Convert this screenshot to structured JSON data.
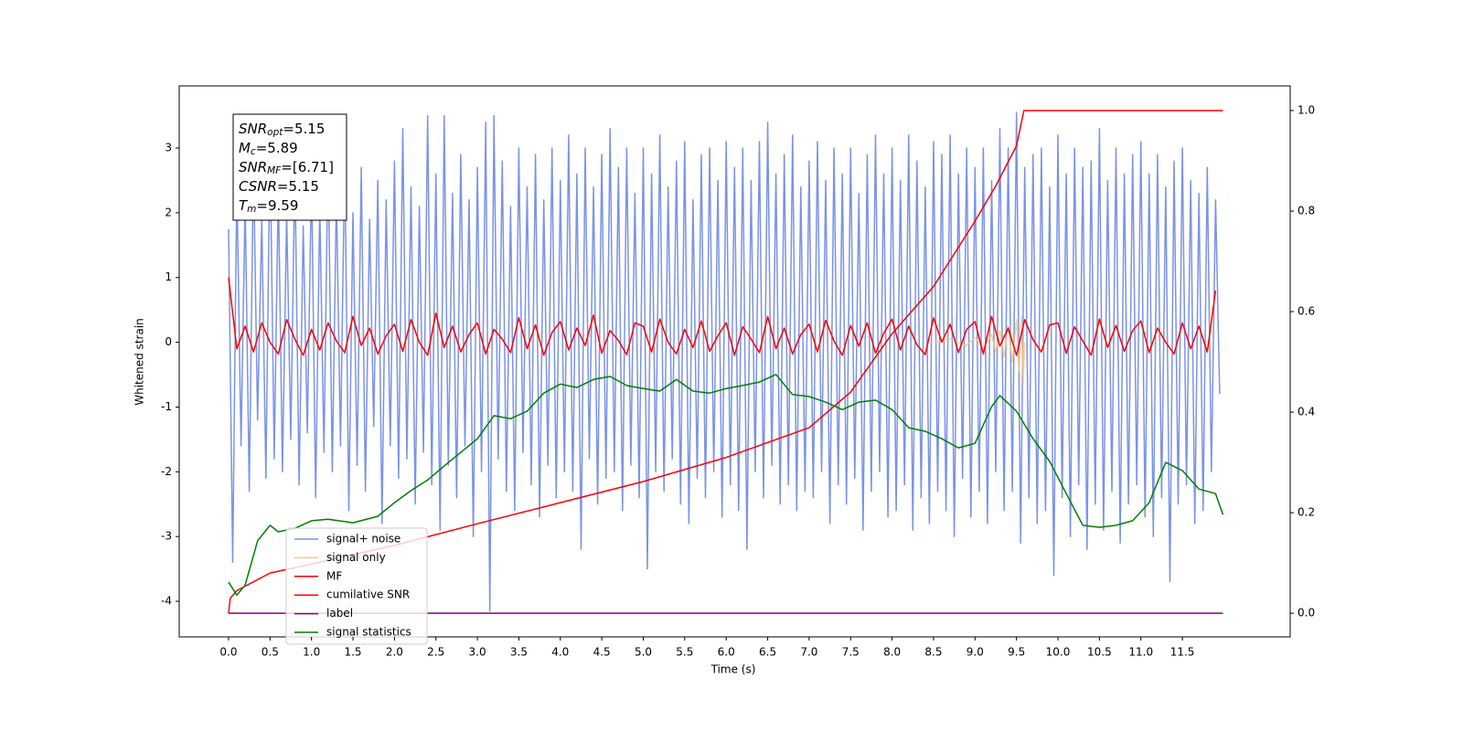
{
  "chart_data": {
    "type": "line",
    "xlabel": "Time (s)",
    "ylabel": "Whitened strain",
    "xlim": [
      -0.595,
      12.8
    ],
    "ylim": [
      -4.55,
      3.96
    ],
    "y2lim": [
      -0.047,
      1.049
    ],
    "xticks": [
      {
        "value": 0,
        "label": "0.0"
      },
      0.5,
      {
        "value": 1,
        "label": "1.0"
      },
      1.5,
      {
        "value": 2,
        "label": "2.0"
      },
      2.5,
      {
        "value": 3,
        "label": "3.0"
      },
      3.5,
      {
        "value": 4,
        "label": "4.0"
      },
      4.5,
      {
        "value": 5,
        "label": "5.0"
      },
      5.5,
      {
        "value": 6,
        "label": "6.0"
      },
      6.5,
      {
        "value": 7,
        "label": "7.0"
      },
      7.5,
      {
        "value": 8,
        "label": "8.0"
      },
      8.5,
      {
        "value": 9,
        "label": "9.0"
      },
      9.5,
      {
        "value": 10,
        "label": "10.0"
      },
      10.5,
      {
        "value": 11,
        "label": "11.0"
      },
      11.5
    ],
    "yticks": [
      -4,
      -3,
      -2,
      -1,
      0,
      1,
      2,
      3
    ],
    "y2ticks": [
      {
        "value": 0,
        "label": "0.0"
      },
      0.2,
      0.4,
      0.6,
      0.8,
      {
        "value": 1,
        "label": "1.0"
      }
    ],
    "legend": "lower left",
    "annotation": [
      {
        "base": "SNR",
        "sub": "opt",
        "text": "=5.15"
      },
      {
        "base": "M",
        "sub": "c",
        "text": "=5.89"
      },
      {
        "base": "SNR",
        "sub": "MF",
        "text": "=[6.71]"
      },
      {
        "base": "CSNR",
        "sub": "",
        "text": "=5.15"
      },
      {
        "base": "T",
        "sub": "m",
        "text": "=9.59"
      }
    ],
    "x": [
      0,
      0.05,
      0.1,
      0.15,
      0.2,
      0.25,
      0.3,
      0.35,
      0.4,
      0.45,
      0.5,
      0.55,
      0.6,
      0.65,
      0.7,
      0.75,
      0.8,
      0.85,
      0.9,
      0.95,
      1,
      1.05,
      1.1,
      1.15,
      1.2,
      1.25,
      1.3,
      1.35,
      1.4,
      1.45,
      1.5,
      1.55,
      1.6,
      1.65,
      1.7,
      1.75,
      1.8,
      1.85,
      1.9,
      1.95,
      2,
      2.05,
      2.1,
      2.15,
      2.2,
      2.25,
      2.3,
      2.35,
      2.4,
      2.45,
      2.5,
      2.55,
      2.6,
      2.65,
      2.7,
      2.75,
      2.8,
      2.85,
      2.9,
      2.95,
      3,
      3.05,
      3.1,
      3.15,
      3.2,
      3.25,
      3.3,
      3.35,
      3.4,
      3.45,
      3.5,
      3.55,
      3.6,
      3.65,
      3.7,
      3.75,
      3.8,
      3.85,
      3.9,
      3.95,
      4,
      4.05,
      4.1,
      4.15,
      4.2,
      4.25,
      4.3,
      4.35,
      4.4,
      4.45,
      4.5,
      4.55,
      4.6,
      4.65,
      4.7,
      4.75,
      4.8,
      4.85,
      4.9,
      4.95,
      5,
      5.05,
      5.1,
      5.15,
      5.2,
      5.25,
      5.3,
      5.35,
      5.4,
      5.45,
      5.5,
      5.55,
      5.6,
      5.65,
      5.7,
      5.75,
      5.8,
      5.85,
      5.9,
      5.95,
      6,
      6.05,
      6.1,
      6.15,
      6.2,
      6.25,
      6.3,
      6.35,
      6.4,
      6.45,
      6.5,
      6.55,
      6.6,
      6.65,
      6.7,
      6.75,
      6.8,
      6.85,
      6.9,
      6.95,
      7,
      7.05,
      7.1,
      7.15,
      7.2,
      7.25,
      7.3,
      7.35,
      7.4,
      7.45,
      7.5,
      7.55,
      7.6,
      7.65,
      7.7,
      7.75,
      7.8,
      7.85,
      7.9,
      7.95,
      8,
      8.05,
      8.1,
      8.15,
      8.2,
      8.25,
      8.3,
      8.35,
      8.4,
      8.45,
      8.5,
      8.55,
      8.6,
      8.65,
      8.7,
      8.75,
      8.8,
      8.85,
      8.9,
      8.95,
      9,
      9.05,
      9.1,
      9.15,
      9.2,
      9.25,
      9.3,
      9.35,
      9.4,
      9.45,
      9.5,
      9.55,
      9.6,
      9.65,
      9.7,
      9.75,
      9.8,
      9.85,
      9.9,
      9.95,
      10,
      10.05,
      10.1,
      10.15,
      10.2,
      10.25,
      10.3,
      10.35,
      10.4,
      10.45,
      10.5,
      10.55,
      10.6,
      10.65,
      10.7,
      10.75,
      10.8,
      10.85,
      10.9,
      10.95,
      11,
      11.05,
      11.1,
      11.15,
      11.2,
      11.25,
      11.3,
      11.35,
      11.4,
      11.45,
      11.5,
      11.55,
      11.6,
      11.65,
      11.7,
      11.75,
      11.8,
      11.85,
      11.9,
      11.95
    ],
    "series": [
      {
        "name": "signal+ noise",
        "color": "#7b93e6",
        "values": [
          1.75,
          -3.4,
          2.5,
          -1.6,
          2.2,
          -2.3,
          2.8,
          -1.2,
          1.9,
          -2.1,
          3.1,
          -1.8,
          2.4,
          -2.0,
          2.0,
          -1.5,
          2.7,
          -2.2,
          1.8,
          -1.4,
          2.6,
          -2.4,
          2.1,
          -1.7,
          3.0,
          -2.0,
          2.3,
          -1.6,
          2.9,
          -2.6,
          2.0,
          -1.9,
          2.7,
          -2.3,
          1.9,
          -1.3,
          2.5,
          -2.8,
          2.2,
          -1.6,
          2.8,
          -2.1,
          3.3,
          -1.8,
          2.4,
          -2.5,
          2.1,
          -1.7,
          3.5,
          -2.2,
          2.6,
          -2.9,
          3.5,
          -1.9,
          2.3,
          -2.4,
          2.9,
          -1.6,
          2.2,
          -3.0,
          2.7,
          -2.0,
          3.4,
          -4.15,
          3.5,
          -1.8,
          2.8,
          -2.3,
          2.1,
          -2.6,
          3.0,
          -1.7,
          2.4,
          -2.2,
          2.9,
          -2.7,
          2.2,
          -1.9,
          3.0,
          -2.4,
          2.5,
          -2.0,
          3.2,
          -2.3,
          2.6,
          -3.2,
          3.0,
          -1.8,
          2.4,
          -2.5,
          2.9,
          -2.1,
          3.3,
          -2.0,
          2.7,
          -2.6,
          3.0,
          -1.9,
          2.3,
          -2.4,
          3.0,
          -3.5,
          2.6,
          -2.0,
          3.2,
          -2.3,
          2.4,
          -1.8,
          2.8,
          -2.5,
          3.1,
          -2.8,
          2.2,
          -2.1,
          2.9,
          -2.4,
          3.0,
          -2.0,
          2.5,
          -2.7,
          3.1,
          -2.2,
          2.7,
          -2.6,
          3.0,
          -3.2,
          2.5,
          -2.0,
          3.1,
          -2.4,
          3.4,
          -1.9,
          2.6,
          -2.5,
          2.9,
          -2.2,
          3.2,
          -2.6,
          2.4,
          -2.3,
          2.8,
          -2.4,
          3.1,
          -2.0,
          2.5,
          -2.8,
          3.0,
          -2.2,
          2.6,
          -2.5,
          3.0,
          -2.1,
          2.3,
          -2.9,
          2.9,
          -2.3,
          3.2,
          -2.0,
          2.6,
          -2.7,
          3.0,
          -2.6,
          2.5,
          -2.2,
          3.2,
          -2.9,
          2.8,
          -2.4,
          2.4,
          -2.8,
          3.1,
          -2.3,
          2.9,
          -2.6,
          3.2,
          -3.0,
          2.6,
          -2.1,
          3.0,
          -2.7,
          2.7,
          -2.3,
          3.0,
          -2.8,
          2.5,
          -2.0,
          3.3,
          -2.6,
          3.0,
          -2.3,
          3.55,
          -3.1,
          2.7,
          -2.4,
          2.9,
          -2.8,
          3.0,
          -2.6,
          2.4,
          -3.6,
          3.2,
          -2.4,
          2.6,
          -3.0,
          3.0,
          -2.2,
          2.7,
          -3.2,
          2.8,
          -2.5,
          3.3,
          -2.9,
          2.5,
          -2.3,
          3.0,
          -3.1,
          2.6,
          -2.5,
          2.9,
          -2.2,
          3.1,
          -2.7,
          2.6,
          -3.0,
          2.9,
          -2.4,
          2.4,
          -3.7,
          2.8,
          -2.5,
          3.0,
          -2.2,
          2.5,
          -2.8,
          2.3,
          -2.6,
          2.7,
          -2.0,
          2.2,
          -0.8
        ]
      },
      {
        "name": "signal only",
        "color": "#f7c67a",
        "x": [
          8.5,
          8.7,
          8.9,
          9.0,
          9.1,
          9.2,
          9.25,
          9.3,
          9.35,
          9.4,
          9.45,
          9.5,
          9.53,
          9.56,
          9.58,
          9.6
        ],
        "values": [
          0,
          0.05,
          -0.05,
          0.08,
          -0.1,
          0.12,
          -0.15,
          0.18,
          -0.22,
          0.25,
          -0.3,
          0.35,
          -0.45,
          0.4,
          -0.65,
          0
        ]
      },
      {
        "name": "MF",
        "color": "#ff0000",
        "x": [
          0,
          0.1,
          0.2,
          0.3,
          0.4,
          0.5,
          0.6,
          0.7,
          0.8,
          0.9,
          1,
          1.1,
          1.2,
          1.3,
          1.4,
          1.5,
          1.6,
          1.7,
          1.8,
          1.9,
          2,
          2.1,
          2.2,
          2.3,
          2.4,
          2.5,
          2.6,
          2.7,
          2.8,
          2.9,
          3,
          3.1,
          3.2,
          3.3,
          3.4,
          3.5,
          3.6,
          3.7,
          3.8,
          3.9,
          4,
          4.1,
          4.2,
          4.3,
          4.4,
          4.5,
          4.6,
          4.7,
          4.8,
          4.9,
          5,
          5.1,
          5.2,
          5.3,
          5.4,
          5.5,
          5.6,
          5.7,
          5.8,
          5.9,
          6,
          6.1,
          6.2,
          6.3,
          6.4,
          6.5,
          6.6,
          6.7,
          6.8,
          6.9,
          7,
          7.1,
          7.2,
          7.3,
          7.4,
          7.5,
          7.6,
          7.7,
          7.8,
          7.9,
          8,
          8.1,
          8.2,
          8.3,
          8.4,
          8.5,
          8.6,
          8.7,
          8.8,
          8.9,
          9,
          9.1,
          9.2,
          9.3,
          9.4,
          9.5,
          9.6,
          9.7,
          9.8,
          9.9,
          10,
          10.1,
          10.2,
          10.3,
          10.4,
          10.5,
          10.6,
          10.7,
          10.8,
          10.9,
          11,
          11.1,
          11.2,
          11.3,
          11.4,
          11.5,
          11.6,
          11.7,
          11.8,
          11.9
        ],
        "values": [
          1.0,
          -0.1,
          0.25,
          -0.15,
          0.3,
          0.0,
          -0.18,
          0.35,
          0.05,
          -0.2,
          0.2,
          -0.12,
          0.3,
          0.02,
          -0.16,
          0.4,
          -0.05,
          0.22,
          -0.18,
          0.1,
          0.28,
          -0.14,
          0.35,
          0.0,
          -0.2,
          0.45,
          -0.08,
          0.25,
          -0.15,
          0.12,
          0.3,
          -0.18,
          0.2,
          0.05,
          -0.16,
          0.38,
          -0.1,
          0.27,
          -0.2,
          0.15,
          0.32,
          -0.12,
          0.22,
          -0.05,
          0.42,
          -0.17,
          0.18,
          0.03,
          -0.19,
          0.3,
          0.25,
          -0.15,
          0.36,
          0.0,
          -0.18,
          0.2,
          -0.08,
          0.33,
          -0.14,
          0.1,
          0.3,
          -0.2,
          0.24,
          0.05,
          -0.16,
          0.4,
          -0.1,
          0.22,
          -0.18,
          0.12,
          0.28,
          -0.15,
          0.34,
          0.02,
          -0.2,
          0.26,
          -0.06,
          0.3,
          -0.17,
          0.14,
          0.36,
          -0.12,
          0.25,
          -0.04,
          -0.19,
          0.38,
          0.0,
          0.28,
          -0.16,
          0.2,
          0.32,
          -0.18,
          0.4,
          -0.06,
          0.22,
          -0.2,
          0.35,
          0.04,
          -0.15,
          0.27,
          0.3,
          -0.17,
          0.24,
          0.02,
          -0.2,
          0.36,
          -0.08,
          0.26,
          -0.14,
          0.18,
          0.33,
          -0.16,
          0.22,
          0.0,
          -0.18,
          0.3,
          -0.1,
          0.25,
          -0.15,
          0.8
        ]
      },
      {
        "name": "cumilative SNR",
        "color": "#ff0000",
        "axis": "y2",
        "x": [
          0,
          0.02,
          0.1,
          0.5,
          1,
          2,
          3,
          4,
          5,
          6,
          7,
          7.5,
          8,
          8.5,
          9,
          9.25,
          9.5,
          9.59,
          11.99
        ],
        "values": [
          0,
          0.03,
          0.045,
          0.08,
          0.098,
          0.135,
          0.178,
          0.22,
          0.262,
          0.31,
          0.369,
          0.44,
          0.556,
          0.65,
          0.78,
          0.85,
          0.93,
          1.0,
          1.0
        ]
      },
      {
        "name": "label",
        "color": "#800080",
        "axis": "y2",
        "x": [
          0,
          11.99
        ],
        "values": [
          0,
          0
        ]
      },
      {
        "name": "signal statistics",
        "color": "#008000",
        "axis": "y2",
        "x": [
          0,
          0.1,
          0.2,
          0.35,
          0.5,
          0.6,
          0.8,
          1.0,
          1.2,
          1.5,
          1.8,
          2.0,
          2.2,
          2.4,
          2.6,
          2.8,
          3.0,
          3.2,
          3.4,
          3.6,
          3.8,
          4.0,
          4.2,
          4.4,
          4.6,
          4.8,
          5.0,
          5.2,
          5.4,
          5.6,
          5.8,
          6.0,
          6.2,
          6.4,
          6.6,
          6.8,
          7.0,
          7.2,
          7.4,
          7.6,
          7.8,
          8.0,
          8.2,
          8.4,
          8.6,
          8.8,
          9.0,
          9.2,
          9.3,
          9.5,
          9.7,
          9.9,
          10.1,
          10.3,
          10.5,
          10.7,
          10.9,
          11.1,
          11.3,
          11.5,
          11.7,
          11.9,
          11.99
        ],
        "values": [
          0.062,
          0.036,
          0.056,
          0.144,
          0.175,
          0.162,
          0.169,
          0.184,
          0.187,
          0.18,
          0.193,
          0.22,
          0.244,
          0.265,
          0.293,
          0.32,
          0.347,
          0.393,
          0.387,
          0.402,
          0.438,
          0.456,
          0.449,
          0.465,
          0.471,
          0.453,
          0.447,
          0.442,
          0.465,
          0.442,
          0.438,
          0.447,
          0.453,
          0.46,
          0.475,
          0.435,
          0.431,
          0.42,
          0.405,
          0.42,
          0.424,
          0.405,
          0.369,
          0.362,
          0.347,
          0.329,
          0.338,
          0.411,
          0.433,
          0.402,
          0.347,
          0.302,
          0.238,
          0.175,
          0.171,
          0.175,
          0.184,
          0.22,
          0.3,
          0.284,
          0.247,
          0.238,
          0.196
        ]
      }
    ]
  }
}
